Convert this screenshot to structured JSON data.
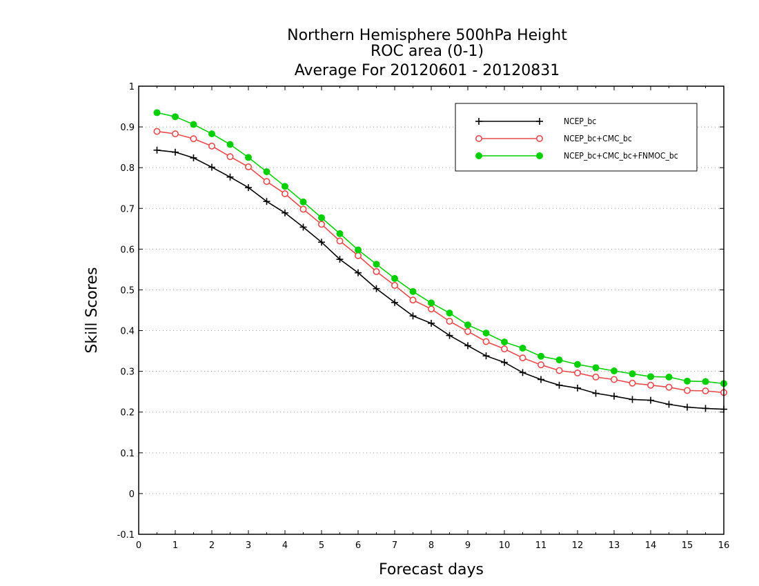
{
  "chart_data": {
    "type": "line",
    "title": [
      "Northern Hemisphere 500hPa Height",
      "ROC area (0-1)",
      "Average For 20120601 - 20120831"
    ],
    "xlabel": "Forecast days",
    "ylabel": "Skill Scores",
    "xlim": [
      0,
      16
    ],
    "ylim": [
      -0.1,
      1
    ],
    "xticks": [
      "0",
      "1",
      "2",
      "3",
      "4",
      "5",
      "6",
      "7",
      "8",
      "9",
      "10",
      "11",
      "12",
      "13",
      "14",
      "15",
      "16"
    ],
    "yticks": [
      "-0.1",
      "0",
      "0.1",
      "0.2",
      "0.3",
      "0.4",
      "0.5",
      "0.6",
      "0.7",
      "0.8",
      "0.9",
      "1"
    ],
    "grid": "horizontal-dotted",
    "legend_position": "top-right",
    "x": [
      0.5,
      1,
      1.5,
      2,
      2.5,
      3,
      3.5,
      4,
      4.5,
      5,
      5.5,
      6,
      6.5,
      7,
      7.5,
      8,
      8.5,
      9,
      9.5,
      10,
      10.5,
      11,
      11.5,
      12,
      12.5,
      13,
      13.5,
      14,
      14.5,
      15,
      15.5,
      16
    ],
    "series": [
      {
        "name": "NCEP_bc",
        "color": "#000000",
        "marker": "plus",
        "values": [
          0.843,
          0.838,
          0.824,
          0.801,
          0.777,
          0.751,
          0.717,
          0.689,
          0.654,
          0.617,
          0.575,
          0.542,
          0.503,
          0.469,
          0.436,
          0.418,
          0.388,
          0.363,
          0.338,
          0.322,
          0.297,
          0.28,
          0.266,
          0.259,
          0.246,
          0.239,
          0.231,
          0.229,
          0.219,
          0.212,
          0.209,
          0.207
        ]
      },
      {
        "name": "NCEP_bc+CMC_bc",
        "color": "#e8484a",
        "marker": "open-circle",
        "values": [
          0.889,
          0.883,
          0.871,
          0.853,
          0.827,
          0.802,
          0.766,
          0.736,
          0.698,
          0.661,
          0.62,
          0.584,
          0.545,
          0.511,
          0.475,
          0.453,
          0.423,
          0.398,
          0.373,
          0.355,
          0.333,
          0.316,
          0.302,
          0.296,
          0.286,
          0.28,
          0.271,
          0.266,
          0.261,
          0.253,
          0.252,
          0.248
        ]
      },
      {
        "name": "NCEP_bc+CMC_bc+FNMOC_bc",
        "color": "#00d000",
        "marker": "filled-circle",
        "values": [
          0.935,
          0.925,
          0.906,
          0.883,
          0.857,
          0.825,
          0.79,
          0.754,
          0.716,
          0.677,
          0.638,
          0.598,
          0.563,
          0.528,
          0.496,
          0.468,
          0.443,
          0.414,
          0.394,
          0.372,
          0.357,
          0.337,
          0.328,
          0.317,
          0.309,
          0.301,
          0.294,
          0.287,
          0.286,
          0.276,
          0.275,
          0.27
        ]
      }
    ]
  }
}
